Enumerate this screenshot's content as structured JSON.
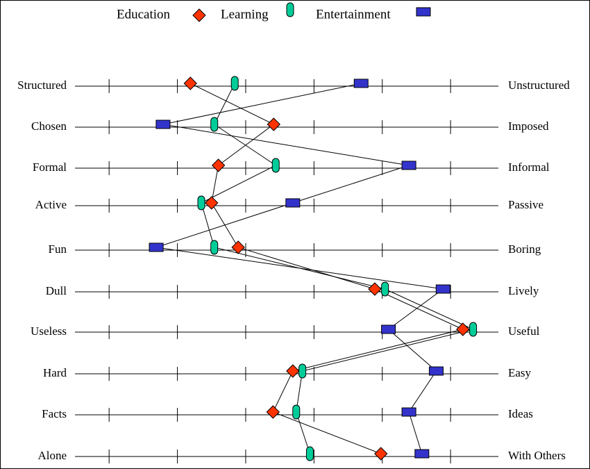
{
  "chart_data": {
    "type": "line",
    "categories": [
      "Structured",
      "Chosen",
      "Formal",
      "Active",
      "Fun",
      "Dull",
      "Useless",
      "Hard",
      "Facts",
      "Alone"
    ],
    "right_labels": [
      "Unstructured",
      "Imposed",
      "Informal",
      "Passive",
      "Boring",
      "Lively",
      "Useful",
      "Easy",
      "Ideas",
      "With Others"
    ],
    "xlim": [
      0.5,
      6.7
    ],
    "xticks": [
      1,
      2,
      3,
      4,
      5,
      6
    ],
    "series": [
      {
        "name": "Education",
        "color": "#ff3300",
        "marker": "diamond",
        "values": [
          2.19,
          3.41,
          2.6,
          2.5,
          2.89,
          4.89,
          6.18,
          3.69,
          3.4,
          4.98
        ]
      },
      {
        "name": "Learning",
        "color": "#00cc99",
        "marker": "pill",
        "values": [
          2.84,
          2.54,
          3.44,
          2.35,
          2.54,
          5.04,
          6.33,
          3.83,
          3.74,
          3.94
        ]
      },
      {
        "name": "Entertainment",
        "color": "#3333cc",
        "marker": "rect",
        "values": [
          4.69,
          1.79,
          5.39,
          3.69,
          1.69,
          5.89,
          5.09,
          5.79,
          5.39,
          5.58
        ]
      }
    ]
  }
}
